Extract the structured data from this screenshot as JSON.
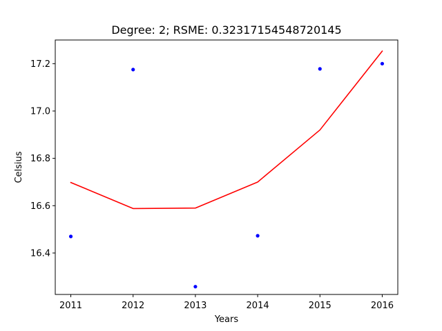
{
  "chart_data": {
    "type": "scatter",
    "title": "Degree: 2; RSME: 0.32317154548720145",
    "xlabel": "Years",
    "ylabel": "Celsius",
    "xlim": [
      2010.75,
      2016.25
    ],
    "ylim": [
      16.225,
      17.3
    ],
    "xticks": [
      2011,
      2012,
      2013,
      2014,
      2015,
      2016
    ],
    "yticks": [
      16.4,
      16.6,
      16.8,
      17.0,
      17.2
    ],
    "ytick_labels": [
      "16.4",
      "16.6",
      "16.8",
      "17.0",
      "17.2"
    ],
    "grid": false,
    "series": [
      {
        "kind": "points",
        "color": "#0000ff",
        "x": [
          2011,
          2012,
          2013,
          2014,
          2015,
          2016
        ],
        "y": [
          16.47,
          17.175,
          16.258,
          16.473,
          17.178,
          17.2
        ]
      },
      {
        "kind": "line",
        "color": "#ff0000",
        "x": [
          2011,
          2012,
          2013,
          2014,
          2015,
          2016
        ],
        "y": [
          16.698,
          16.588,
          16.59,
          16.7,
          16.92,
          17.253
        ]
      }
    ]
  }
}
